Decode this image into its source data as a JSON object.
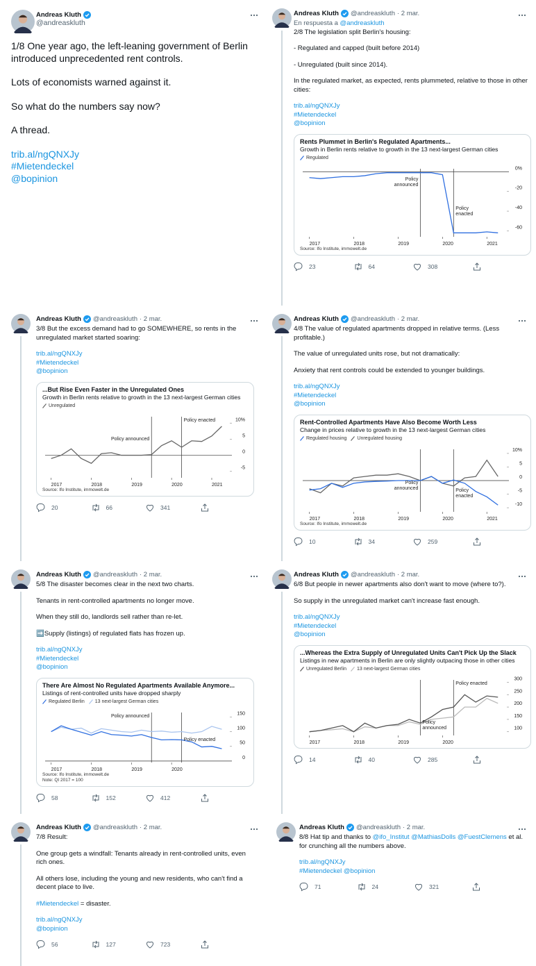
{
  "tweets": [
    {
      "author": "Andreas Kluth",
      "handle": "@andreaskluth",
      "paragraphs": [
        "1/8 One year ago, the left-leaning government of Berlin introduced unprecedented rent controls.",
        "Lots of economists warned against it.",
        "So what do the numbers say now?",
        "A thread."
      ],
      "links": [
        "trib.al/ngQNXJy",
        "#Mietendeckel",
        "@bopinion"
      ]
    },
    {
      "author": "Andreas Kluth",
      "handle": "@andreaskluth",
      "date": "· 2 mar.",
      "reply_label": "En respuesta a",
      "reply_to": "@andreaskluth",
      "paragraphs": [
        "2/8 The legislation split Berlin's housing:",
        "- Regulated and capped (built before 2014)",
        "- Unregulated (built since 2014).",
        "In the regulated market, as expected, rents plummeted, relative to those in other cities:"
      ],
      "links": [
        "trib.al/ngQNXJy",
        "#Mietendeckel",
        "@bopinion"
      ],
      "chart": {
        "type": "line",
        "title": "Rents Plummet in Berlin's Regulated Apartments...",
        "subtitle": "Growth in Berlin rents relative to growth in the 13 next-largest German cities",
        "x": [
          2017,
          2017.25,
          2017.5,
          2017.75,
          2018,
          2018.25,
          2018.5,
          2018.75,
          2019,
          2019.25,
          2019.5,
          2019.75,
          2020,
          2020.25,
          2020.5,
          2020.75,
          2021,
          2021.25
        ],
        "series": [
          {
            "name": "Regulated",
            "color": "#2f6fe0",
            "values": [
              -6,
              -7,
              -6,
              -5,
              -5,
              -4,
              -2,
              -1,
              -1,
              -1,
              -1,
              -1,
              -3,
              -62,
              -62,
              -62,
              -61,
              -62
            ]
          }
        ],
        "xlim": [
          2016.85,
          2021.45
        ],
        "ylim": [
          -66,
          3
        ],
        "xticks": [
          2017,
          2018,
          2019,
          2020,
          2021
        ],
        "yticks": [
          {
            "value": 0,
            "label": "0%"
          },
          -20,
          -40,
          -60
        ],
        "annotations": [
          {
            "text": "Policy announced",
            "x": 2019.5
          },
          {
            "text": "Policy enacted",
            "x": 2020.25
          }
        ],
        "source": "Source: Ifo Institute, immowelt.de"
      },
      "counts": {
        "replies": 23,
        "retweets": 64,
        "likes": 308
      }
    },
    {
      "author": "Andreas Kluth",
      "handle": "@andreaskluth",
      "date": "· 2 mar.",
      "paragraphs": [
        "3/8 But the excess demand had to go SOMEWHERE, so rents in the unregulated market started soaring:"
      ],
      "links": [
        "trib.al/ngQNXJy",
        "#Mietendeckel",
        "@bopinion"
      ],
      "chart": {
        "type": "line",
        "title": "...But Rise Even Faster in the Unregulated Ones",
        "subtitle": "Growth in Berlin rents relative to growth in the 13 next-largest German cities",
        "x": [
          2017,
          2017.25,
          2017.5,
          2017.75,
          2018,
          2018.25,
          2018.5,
          2018.75,
          2019,
          2019.25,
          2019.5,
          2019.75,
          2020,
          2020.25,
          2020.5,
          2020.75,
          2021,
          2021.25
        ],
        "series": [
          {
            "name": "Unregulated",
            "color": "#666666",
            "values": [
              -1,
              0,
              2,
              -1,
              -2.5,
              0.5,
              0.8,
              0,
              0,
              0,
              0.2,
              3,
              4.5,
              2.5,
              4.5,
              4.3,
              6,
              9
            ]
          }
        ],
        "xlim": [
          2016.85,
          2021.45
        ],
        "ylim": [
          -7,
          12
        ],
        "xticks": [
          2017,
          2018,
          2019,
          2020,
          2021
        ],
        "yticks": [
          {
            "value": 10,
            "label": "10%"
          },
          5,
          0,
          -5
        ],
        "annotations": [
          {
            "text": "Policy announced",
            "x": 2019.5
          },
          {
            "text": "Policy enacted",
            "x": 2020.25
          }
        ],
        "source": "Source: Ifo Institute, immowelt.de"
      },
      "counts": {
        "replies": 20,
        "retweets": 66,
        "likes": 341
      }
    },
    {
      "author": "Andreas Kluth",
      "handle": "@andreaskluth",
      "date": "· 2 mar.",
      "paragraphs": [
        "4/8 The value of regulated apartments dropped in relative terms. (Less profitable.)",
        "The value of unregulated units rose, but not dramatically:",
        "Anxiety that rent controls could be extended to younger buildings."
      ],
      "links": [
        "trib.al/ngQNXJy",
        "#Mietendeckel",
        "@bopinion"
      ],
      "chart": {
        "type": "line",
        "title": "Rent-Controlled Apartments Have Also Become Worth Less",
        "subtitle": "Change in prices relative to growth in the 13 next-largest German cities",
        "x": [
          2017,
          2017.25,
          2017.5,
          2017.75,
          2018,
          2018.25,
          2018.5,
          2018.75,
          2019,
          2019.25,
          2019.5,
          2019.75,
          2020,
          2020.25,
          2020.5,
          2020.75,
          2021,
          2021.25
        ],
        "series": [
          {
            "name": "Regulated housing",
            "color": "#2f6fe0",
            "values": [
              -3.5,
              -3,
              -1,
              -2.5,
              -1,
              -0.5,
              -0.3,
              -0.2,
              0,
              0,
              0,
              1.5,
              -1,
              0.2,
              -1,
              -4,
              -6,
              -9
            ]
          },
          {
            "name": "Unregulated housing",
            "color": "#666666",
            "values": [
              -3,
              -4.5,
              -1,
              -2,
              1,
              1.5,
              2,
              2,
              2.5,
              1.5,
              0,
              1.5,
              -1,
              -2,
              1,
              1.5,
              7.5,
              1.5
            ]
          }
        ],
        "xlim": [
          2016.85,
          2021.45
        ],
        "ylim": [
          -11.5,
          11.5
        ],
        "xticks": [
          2017,
          2018,
          2019,
          2020,
          2021
        ],
        "yticks": [
          {
            "value": 10,
            "label": "10%"
          },
          5,
          0,
          -5,
          -10
        ],
        "annotations": [
          {
            "text": "Policy announced",
            "x": 2019.5
          },
          {
            "text": "Policy enacted",
            "x": 2020.25
          }
        ],
        "source": "Source: Ifo Institute, immowelt.de"
      },
      "counts": {
        "replies": 10,
        "retweets": 34,
        "likes": 259
      }
    },
    {
      "author": "Andreas Kluth",
      "handle": "@andreaskluth",
      "date": "· 2 mar.",
      "paragraphs": [
        "5/8 The disaster becomes clear in the next two charts.",
        "Tenants in rent-controlled apartments no longer move.",
        "When they still do, landlords sell rather than re-let.",
        "➡️Supply (listings) of regulated flats has frozen up."
      ],
      "links": [
        "trib.al/ngQNXJy",
        "#Mietendeckel",
        "@bopinion"
      ],
      "chart": {
        "type": "line",
        "title": "There Are Almost No Regulated Apartments Available Anymore...",
        "subtitle": "Listings of rent-controlled units have dropped sharply",
        "x": [
          2017,
          2017.25,
          2017.5,
          2017.75,
          2018,
          2018.25,
          2018.5,
          2018.75,
          2019,
          2019.25,
          2019.5,
          2019.75,
          2020,
          2020.25,
          2020.5,
          2020.75,
          2021,
          2021.25
        ],
        "series": [
          {
            "name": "Regulated Berlin",
            "color": "#2f6fe0",
            "values": [
              100,
              120,
              108,
              98,
              88,
              100,
              90,
              88,
              85,
              90,
              80,
              72,
              73,
              72,
              65,
              48,
              50,
              42
            ]
          },
          {
            "name": "13 next-largest German cities",
            "color": "#a9c4ee",
            "values": [
              100,
              115,
              108,
              112,
              95,
              110,
              105,
              100,
              98,
              105,
              100,
              102,
              98,
              100,
              95,
              100,
              118,
              108
            ]
          }
        ],
        "xlim": [
          2016.85,
          2021.45
        ],
        "ylim": [
          -5,
          165
        ],
        "xticks": [
          2017,
          2018,
          2019,
          2020
        ],
        "yticks": [
          150,
          100,
          50,
          0
        ],
        "annotations": [
          {
            "text": "Policy announced",
            "x": 2019.5
          },
          {
            "text": "Policy enacted",
            "x": 2020.25
          }
        ],
        "source": "Source: Ifo Institute, immowelt.de",
        "note": "Note: QI 2017 = 100"
      },
      "counts": {
        "replies": 58,
        "retweets": 152,
        "likes": 412
      }
    },
    {
      "author": "Andreas Kluth",
      "handle": "@andreaskluth",
      "date": "· 2 mar.",
      "paragraphs": [
        "6/8 But people in newer apartments also don't want to move (where to?).",
        "So supply in the unregulated market can't increase fast enough."
      ],
      "links": [
        "trib.al/ngQNXJy",
        "#Mietendeckel",
        "@bopinion"
      ],
      "chart": {
        "type": "line",
        "title": "...Whereas the Extra Supply of Unregulated Units Can't Pick Up the Slack",
        "subtitle": "Listings in new apartments in Berlin are only slightly outpacing those in other cities",
        "x": [
          2017,
          2017.25,
          2017.5,
          2017.75,
          2018,
          2018.25,
          2018.5,
          2018.75,
          2019,
          2019.25,
          2019.5,
          2019.75,
          2020,
          2020.25,
          2020.5,
          2020.75,
          2021,
          2021.25
        ],
        "series": [
          {
            "name": "Unregulated Berlin",
            "color": "#555555",
            "values": [
              100,
              105,
              115,
              125,
              100,
              135,
              115,
              125,
              130,
              150,
              135,
              160,
              190,
              200,
              250,
              220,
              245,
              240
            ]
          },
          {
            "name": "13 next-largest German cities",
            "color": "#bbbbbb",
            "values": [
              100,
              105,
              108,
              112,
              100,
              120,
              115,
              125,
              125,
              140,
              130,
              150,
              155,
              160,
              200,
              200,
              235,
              215
            ]
          }
        ],
        "xlim": [
          2016.85,
          2021.45
        ],
        "ylim": [
          85,
          310
        ],
        "xticks": [
          2017,
          2018,
          2019,
          2020
        ],
        "yticks": [
          300,
          250,
          200,
          150,
          100
        ],
        "annotations": [
          {
            "text": "Policy announced",
            "x": 2019.5
          },
          {
            "text": "Policy enacted",
            "x": 2020.25
          }
        ]
      },
      "counts": {
        "replies": 14,
        "retweets": 40,
        "likes": 285
      }
    },
    {
      "author": "Andreas Kluth",
      "handle": "@andreaskluth",
      "date": "· 2 mar.",
      "paragraphs": [
        "7/8 Result:",
        "One group gets a windfall: Tenants already in rent-controlled units, even rich ones.",
        "All others lose, including the young and new residents, who can't find a decent place to live.",
        [
          {
            "text": "#Mietendeckel",
            "link": true
          },
          {
            "text": " = disaster."
          }
        ]
      ],
      "links": [
        "trib.al/ngQNXJy",
        "@bopinion"
      ],
      "counts": {
        "replies": 56,
        "retweets": 127,
        "likes": 723
      }
    },
    {
      "author": "Andreas Kluth",
      "handle": "@andreaskluth",
      "date": "· 2 mar.",
      "paragraphs": [
        [
          {
            "text": "8/8 Hat tip and thanks to "
          },
          {
            "text": "@ifo_Institut @MathiasDolls @FuestClemens",
            "link": true
          },
          {
            "text": " et al. for crunching all the numbers above."
          }
        ]
      ],
      "links": [
        "trib.al/ngQNXJy",
        "#Mietendeckel @bopinion"
      ],
      "counts": {
        "replies": 71,
        "retweets": 24,
        "likes": 321
      }
    }
  ]
}
